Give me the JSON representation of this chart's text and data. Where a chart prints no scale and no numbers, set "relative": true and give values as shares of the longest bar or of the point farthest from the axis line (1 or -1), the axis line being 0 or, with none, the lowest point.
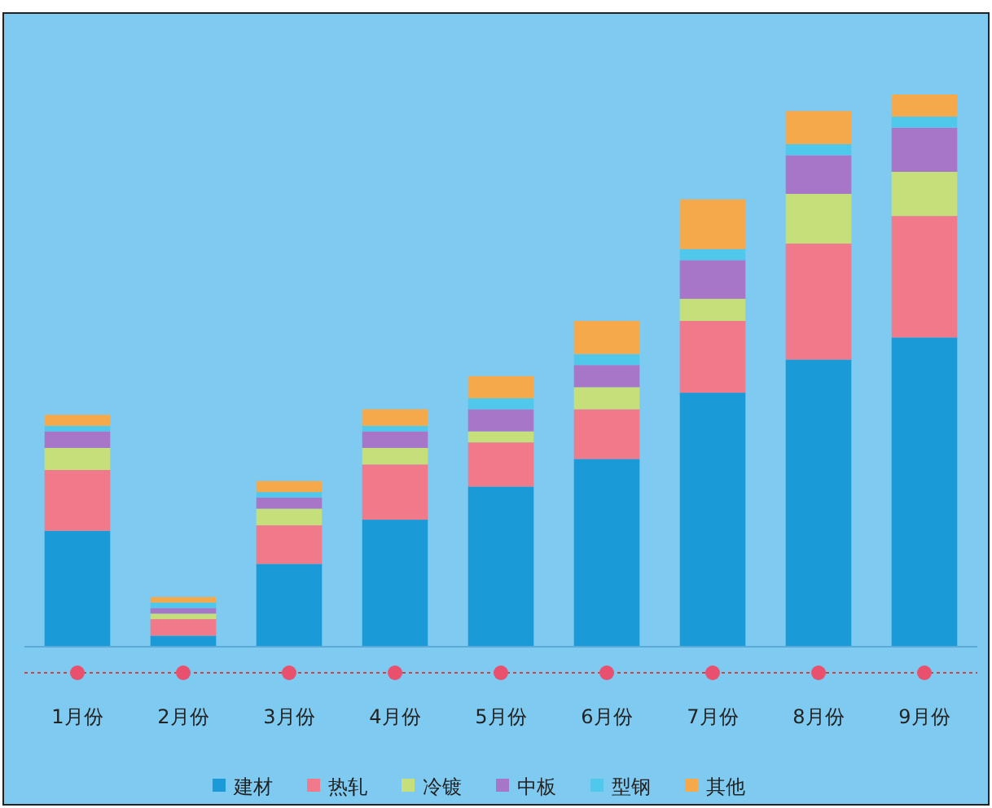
{
  "chart_data": {
    "type": "bar",
    "stacked": true,
    "relative": true,
    "legend": "bottom",
    "categories": [
      "1月份",
      "2月份",
      "3月份",
      "4月份",
      "5月份",
      "6月份",
      "7月份",
      "8月份",
      "9月份"
    ],
    "series": [
      {
        "name": "建材",
        "color": "#1a9ad6",
        "values": [
          0.21,
          0.02,
          0.15,
          0.23,
          0.29,
          0.34,
          0.46,
          0.52,
          0.56
        ]
      },
      {
        "name": "热轧",
        "color": "#f0798a",
        "values": [
          0.11,
          0.03,
          0.07,
          0.1,
          0.08,
          0.09,
          0.13,
          0.21,
          0.22
        ]
      },
      {
        "name": "冷镀",
        "color": "#c5e07a",
        "values": [
          0.04,
          0.01,
          0.03,
          0.03,
          0.02,
          0.04,
          0.04,
          0.09,
          0.08
        ]
      },
      {
        "name": "中板",
        "color": "#a776c9",
        "values": [
          0.03,
          0.01,
          0.02,
          0.03,
          0.04,
          0.04,
          0.07,
          0.07,
          0.08
        ]
      },
      {
        "name": "型钢",
        "color": "#4fc8ec",
        "values": [
          0.01,
          0.01,
          0.01,
          0.01,
          0.02,
          0.02,
          0.02,
          0.02,
          0.02
        ]
      },
      {
        "name": "其他",
        "color": "#f5a94a",
        "values": [
          0.02,
          0.01,
          0.02,
          0.03,
          0.04,
          0.06,
          0.09,
          0.06,
          0.04
        ]
      }
    ]
  }
}
